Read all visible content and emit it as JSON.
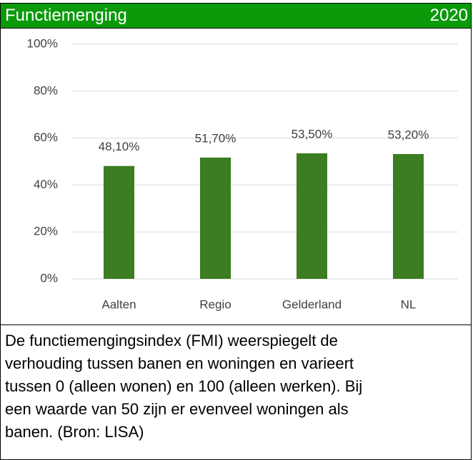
{
  "header": {
    "title": "Functiemenging",
    "year": "2020"
  },
  "chart_data": {
    "type": "bar",
    "categories": [
      "Aalten",
      "Regio",
      "Gelderland",
      "NL"
    ],
    "values": [
      48.1,
      51.7,
      53.5,
      53.2
    ],
    "value_labels": [
      "48,10%",
      "51,70%",
      "53,50%",
      "53,20%"
    ],
    "color": "#3c7d22",
    "ylim": [
      0,
      100
    ],
    "yticks": [
      {
        "value": 0,
        "label": "0%"
      },
      {
        "value": 20,
        "label": "20%"
      },
      {
        "value": 40,
        "label": "40%"
      },
      {
        "value": 60,
        "label": "60%"
      },
      {
        "value": 80,
        "label": "80%"
      },
      {
        "value": 100,
        "label": "100%"
      }
    ],
    "grid": true
  },
  "description": {
    "lines": [
      "De functiemengingsindex (FMI) weerspiegelt de",
      "verhouding tussen banen en woningen en varieert",
      "tussen 0 (alleen wonen) en 100 (alleen werken). Bij",
      "een waarde van 50 zijn er evenveel woningen als",
      "banen. (Bron: LISA)"
    ]
  }
}
